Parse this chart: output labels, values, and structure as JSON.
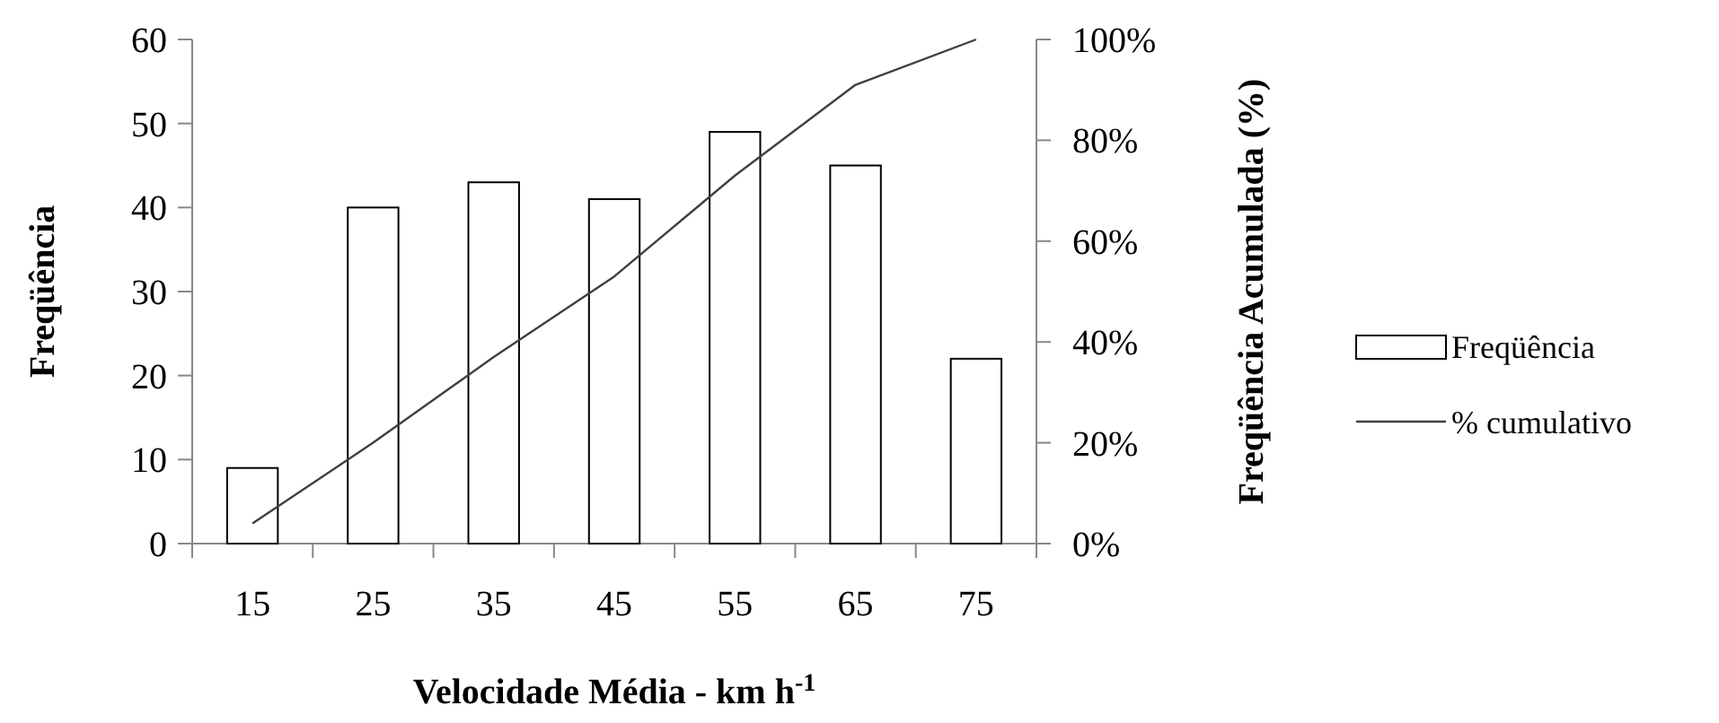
{
  "chart_data": {
    "type": "bar",
    "xlabel": "Velocidade Média - km h$^{-1}$",
    "ylabel": "Freqüência",
    "y2label": "Freqüência Acumulada (%)",
    "categories": [
      "15",
      "25",
      "35",
      "45",
      "55",
      "65",
      "75"
    ],
    "series": [
      {
        "name": "Freqüência",
        "color": "#ffffff",
        "values": [
          9,
          40,
          43,
          41,
          49,
          45,
          22
        ]
      },
      {
        "name": "% cumulativo",
        "type": "line",
        "axis": "y2",
        "color": "#404040",
        "values": [
          4,
          20,
          37,
          53,
          73,
          91,
          100
        ]
      }
    ],
    "ylim": [
      0,
      60
    ],
    "yticks": [
      0,
      10,
      20,
      30,
      40,
      50,
      60
    ],
    "y2lim": [
      0,
      100
    ],
    "y2ticks": [
      {
        "value": 0,
        "label": "0%"
      },
      {
        "value": 20,
        "label": "20%"
      },
      {
        "value": 40,
        "label": "40%"
      },
      {
        "value": 60,
        "label": "60%"
      },
      {
        "value": 80,
        "label": "80%"
      },
      {
        "value": 100,
        "label": "100%"
      }
    ],
    "legend": "right",
    "grid": false,
    "marker": "none",
    "line_style": "solid"
  }
}
